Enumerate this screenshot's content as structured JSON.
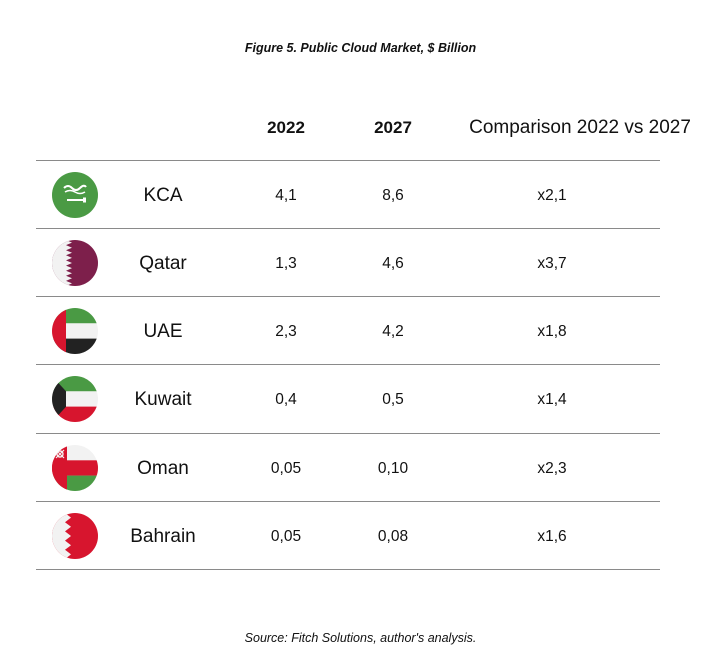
{
  "title": "Figure 5. Public Cloud Market, $ Billion",
  "source": "Source: Fitch Solutions, author's analysis.",
  "headers": {
    "col_2022": "2022",
    "col_2027": "2027",
    "col_comparison": "Comparison 2022 vs 2027"
  },
  "colors": {
    "green": "#4a9a44",
    "red": "#d7152e",
    "maroon": "#7d1f4b",
    "rule": "#8a8a8a"
  },
  "chart_data": {
    "type": "table",
    "title": "Figure 5. Public Cloud Market, $ Billion",
    "columns": [
      "2022",
      "2027",
      "Comparison 2022 vs 2027"
    ],
    "rows": [
      {
        "country": "KCA",
        "flag_icon": "saudi-arabia-flag-icon",
        "v2022": "4,1",
        "v2027": "8,6",
        "comparison": "x2,1"
      },
      {
        "country": "Qatar",
        "flag_icon": "qatar-flag-icon",
        "v2022": "1,3",
        "v2027": "4,6",
        "comparison": "x3,7"
      },
      {
        "country": "UAE",
        "flag_icon": "uae-flag-icon",
        "v2022": "2,3",
        "v2027": "4,2",
        "comparison": "x1,8"
      },
      {
        "country": "Kuwait",
        "flag_icon": "kuwait-flag-icon",
        "v2022": "0,4",
        "v2027": "0,5",
        "comparison": "x1,4"
      },
      {
        "country": "Oman",
        "flag_icon": "oman-flag-icon",
        "v2022": "0,05",
        "v2027": "0,10",
        "comparison": "x2,3"
      },
      {
        "country": "Bahrain",
        "flag_icon": "bahrain-flag-icon",
        "v2022": "0,05",
        "v2027": "0,08",
        "comparison": "x1,6"
      }
    ]
  }
}
